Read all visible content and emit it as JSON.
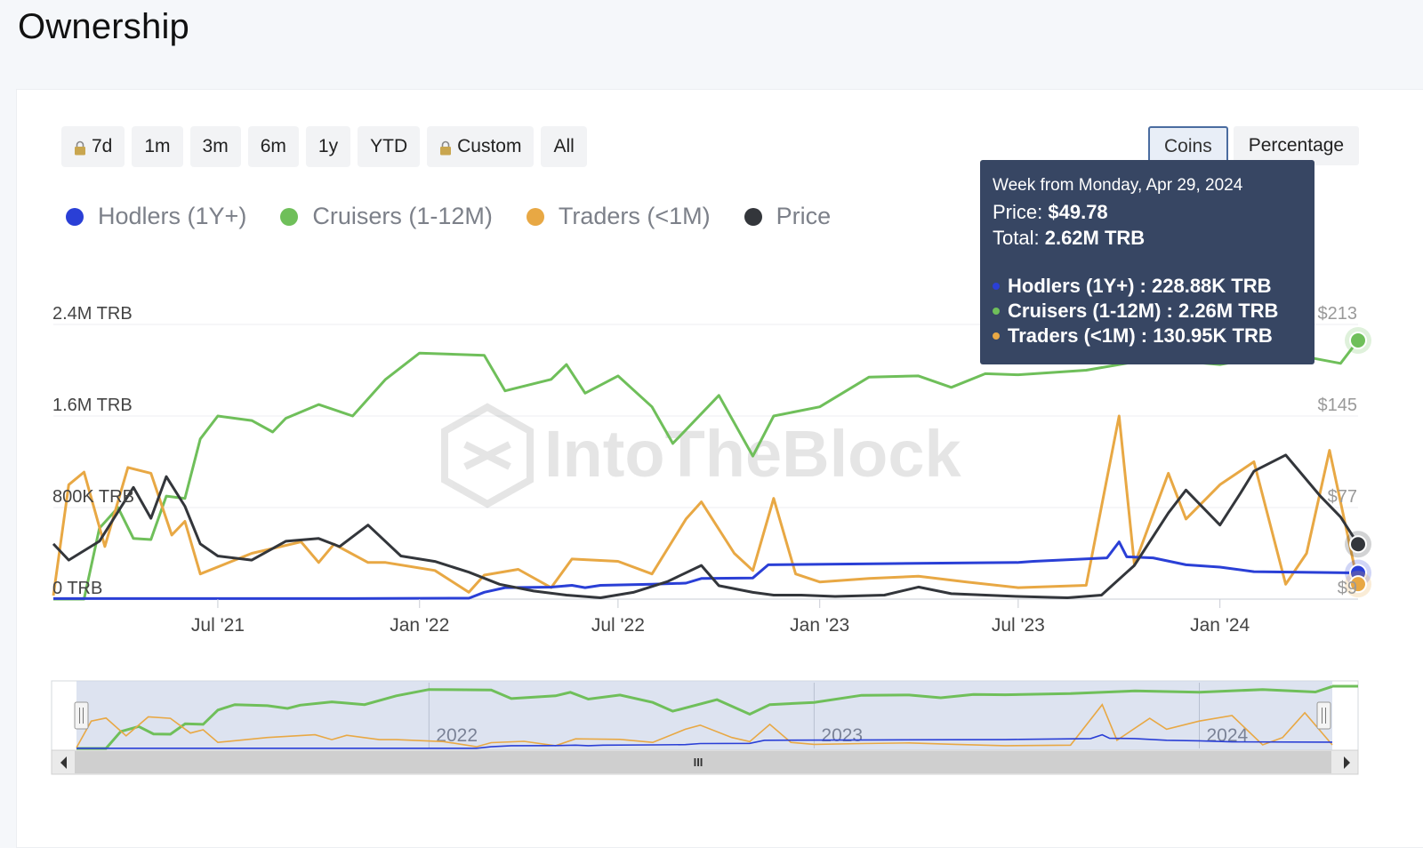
{
  "page": {
    "title": "Ownership"
  },
  "range_buttons": [
    {
      "label": "7d",
      "locked": true
    },
    {
      "label": "1m",
      "locked": false
    },
    {
      "label": "3m",
      "locked": false
    },
    {
      "label": "6m",
      "locked": false
    },
    {
      "label": "1y",
      "locked": false
    },
    {
      "label": "YTD",
      "locked": false
    },
    {
      "label": "Custom",
      "locked": true
    },
    {
      "label": "All",
      "locked": false
    }
  ],
  "mode_buttons": {
    "coins": "Coins",
    "percentage": "Percentage",
    "active": "Coins"
  },
  "watermark": "IntoTheBlock",
  "tooltip": {
    "date": "Week from Monday, Apr 29, 2024",
    "price_label": "Price:",
    "price_value": "$49.78",
    "total_label": "Total:",
    "total_value": "2.62M TRB",
    "rows": [
      {
        "label": "Hodlers (1Y+) :",
        "value": "228.88K TRB",
        "color": "#2a3fd6"
      },
      {
        "label": "Cruisers (1-12M) :",
        "value": "2.26M TRB",
        "color": "#6fbf5a"
      },
      {
        "label": "Traders (<1M) :",
        "value": "130.95K TRB",
        "color": "#e8a844"
      }
    ]
  },
  "navigator": {
    "year_labels": [
      "2022",
      "2023",
      "2024"
    ],
    "scroll_label": "III"
  },
  "chart_data": {
    "type": "line",
    "y_axis_left": {
      "ticks": [
        "0 TRB",
        "800K TRB",
        "1.6M TRB",
        "2.4M TRB"
      ],
      "range": [
        0,
        2400000
      ]
    },
    "y_axis_right": {
      "ticks": [
        "$9",
        "$77",
        "$145",
        "$213"
      ],
      "range": [
        9,
        213
      ]
    },
    "x_tick_labels": [
      "Jul '21",
      "Jan '22",
      "Jul '22",
      "Jan '23",
      "Jul '23",
      "Jan '24"
    ],
    "x_tick_dates": [
      "2021-07-01",
      "2022-01-01",
      "2022-07-01",
      "2023-01-01",
      "2023-07-01",
      "2024-01-01"
    ],
    "x_range": [
      "2021-02-01",
      "2024-05-06"
    ],
    "grid": true,
    "legend_position": "top-left",
    "series": [
      {
        "name": "Hodlers (1Y+)",
        "color": "#2a3fd6",
        "axis": "left",
        "points": [
          [
            "2021-02-01",
            5000
          ],
          [
            "2021-06-01",
            5000
          ],
          [
            "2021-11-01",
            5000
          ],
          [
            "2022-02-15",
            8000
          ],
          [
            "2022-03-01",
            60000
          ],
          [
            "2022-03-20",
            100000
          ],
          [
            "2022-05-01",
            105000
          ],
          [
            "2022-05-20",
            120000
          ],
          [
            "2022-06-01",
            100000
          ],
          [
            "2022-06-15",
            120000
          ],
          [
            "2022-08-01",
            130000
          ],
          [
            "2022-09-01",
            140000
          ],
          [
            "2022-09-15",
            180000
          ],
          [
            "2022-11-01",
            185000
          ],
          [
            "2022-11-15",
            300000
          ],
          [
            "2023-03-01",
            310000
          ],
          [
            "2023-07-01",
            320000
          ],
          [
            "2023-07-15",
            330000
          ],
          [
            "2023-09-20",
            360000
          ],
          [
            "2023-10-01",
            500000
          ],
          [
            "2023-10-08",
            370000
          ],
          [
            "2023-11-01",
            360000
          ],
          [
            "2023-12-01",
            300000
          ],
          [
            "2024-01-01",
            280000
          ],
          [
            "2024-02-01",
            240000
          ],
          [
            "2024-05-06",
            228880
          ]
        ]
      },
      {
        "name": "Cruisers (1-12M)",
        "color": "#6fbf5a",
        "axis": "left",
        "points": [
          [
            "2021-02-01",
            0
          ],
          [
            "2021-03-01",
            0
          ],
          [
            "2021-03-15",
            620000
          ],
          [
            "2021-04-01",
            800000
          ],
          [
            "2021-04-15",
            530000
          ],
          [
            "2021-05-01",
            520000
          ],
          [
            "2021-05-15",
            900000
          ],
          [
            "2021-06-01",
            880000
          ],
          [
            "2021-06-15",
            1400000
          ],
          [
            "2021-07-01",
            1600000
          ],
          [
            "2021-08-01",
            1560000
          ],
          [
            "2021-08-20",
            1460000
          ],
          [
            "2021-09-01",
            1580000
          ],
          [
            "2021-10-01",
            1700000
          ],
          [
            "2021-11-01",
            1600000
          ],
          [
            "2021-12-01",
            1920000
          ],
          [
            "2022-01-01",
            2150000
          ],
          [
            "2022-03-01",
            2130000
          ],
          [
            "2022-03-20",
            1820000
          ],
          [
            "2022-05-01",
            1920000
          ],
          [
            "2022-05-15",
            2050000
          ],
          [
            "2022-06-01",
            1800000
          ],
          [
            "2022-07-01",
            1950000
          ],
          [
            "2022-08-01",
            1680000
          ],
          [
            "2022-08-20",
            1360000
          ],
          [
            "2022-10-01",
            1780000
          ],
          [
            "2022-11-01",
            1250000
          ],
          [
            "2022-11-20",
            1600000
          ],
          [
            "2023-01-01",
            1680000
          ],
          [
            "2023-02-15",
            1940000
          ],
          [
            "2023-04-01",
            1950000
          ],
          [
            "2023-05-01",
            1850000
          ],
          [
            "2023-06-01",
            1970000
          ],
          [
            "2023-07-01",
            1960000
          ],
          [
            "2023-09-01",
            2000000
          ],
          [
            "2023-11-01",
            2100000
          ],
          [
            "2024-01-01",
            2050000
          ],
          [
            "2024-03-01",
            2150000
          ],
          [
            "2024-04-20",
            2060000
          ],
          [
            "2024-05-06",
            2260000
          ]
        ]
      },
      {
        "name": "Traders (<1M)",
        "color": "#e8a844",
        "axis": "left",
        "points": [
          [
            "2021-02-01",
            30000
          ],
          [
            "2021-02-15",
            1000000
          ],
          [
            "2021-03-01",
            1110000
          ],
          [
            "2021-03-20",
            460000
          ],
          [
            "2021-04-10",
            1150000
          ],
          [
            "2021-05-01",
            1100000
          ],
          [
            "2021-05-20",
            560000
          ],
          [
            "2021-06-01",
            680000
          ],
          [
            "2021-06-15",
            220000
          ],
          [
            "2021-08-01",
            400000
          ],
          [
            "2021-09-15",
            500000
          ],
          [
            "2021-10-01",
            320000
          ],
          [
            "2021-10-15",
            480000
          ],
          [
            "2021-11-15",
            320000
          ],
          [
            "2021-12-01",
            320000
          ],
          [
            "2022-01-15",
            250000
          ],
          [
            "2022-02-15",
            60000
          ],
          [
            "2022-03-01",
            210000
          ],
          [
            "2022-04-01",
            260000
          ],
          [
            "2022-05-01",
            100000
          ],
          [
            "2022-05-20",
            350000
          ],
          [
            "2022-07-01",
            330000
          ],
          [
            "2022-08-01",
            220000
          ],
          [
            "2022-09-01",
            700000
          ],
          [
            "2022-09-15",
            850000
          ],
          [
            "2022-10-15",
            400000
          ],
          [
            "2022-11-01",
            250000
          ],
          [
            "2022-11-20",
            880000
          ],
          [
            "2022-12-10",
            220000
          ],
          [
            "2023-01-01",
            150000
          ],
          [
            "2023-02-15",
            180000
          ],
          [
            "2023-04-01",
            200000
          ],
          [
            "2023-05-15",
            150000
          ],
          [
            "2023-07-01",
            100000
          ],
          [
            "2023-09-01",
            120000
          ],
          [
            "2023-10-01",
            1600000
          ],
          [
            "2023-10-15",
            300000
          ],
          [
            "2023-11-15",
            1100000
          ],
          [
            "2023-12-01",
            700000
          ],
          [
            "2024-01-01",
            1000000
          ],
          [
            "2024-02-01",
            1200000
          ],
          [
            "2024-03-01",
            130000
          ],
          [
            "2024-03-20",
            400000
          ],
          [
            "2024-04-10",
            1300000
          ],
          [
            "2024-05-06",
            130950
          ]
        ]
      },
      {
        "name": "Price",
        "color": "#33363b",
        "axis": "right",
        "points": [
          [
            "2021-02-01",
            50
          ],
          [
            "2021-02-15",
            38
          ],
          [
            "2021-03-15",
            52
          ],
          [
            "2021-04-15",
            92
          ],
          [
            "2021-05-01",
            69
          ],
          [
            "2021-05-15",
            100
          ],
          [
            "2021-06-01",
            78
          ],
          [
            "2021-06-15",
            50
          ],
          [
            "2021-07-01",
            41
          ],
          [
            "2021-08-01",
            38
          ],
          [
            "2021-09-01",
            52
          ],
          [
            "2021-10-01",
            54
          ],
          [
            "2021-10-20",
            48
          ],
          [
            "2021-11-15",
            64
          ],
          [
            "2021-12-15",
            41
          ],
          [
            "2022-01-15",
            37
          ],
          [
            "2022-02-15",
            29
          ],
          [
            "2022-03-15",
            20
          ],
          [
            "2022-04-15",
            15
          ],
          [
            "2022-05-15",
            12
          ],
          [
            "2022-06-15",
            10
          ],
          [
            "2022-07-15",
            14
          ],
          [
            "2022-08-15",
            22
          ],
          [
            "2022-09-15",
            34
          ],
          [
            "2022-10-01",
            19
          ],
          [
            "2022-11-01",
            14
          ],
          [
            "2022-11-20",
            12
          ],
          [
            "2022-12-15",
            12
          ],
          [
            "2023-01-15",
            11
          ],
          [
            "2023-03-01",
            12
          ],
          [
            "2023-04-01",
            18
          ],
          [
            "2023-05-01",
            13
          ],
          [
            "2023-07-01",
            11
          ],
          [
            "2023-08-15",
            10
          ],
          [
            "2023-09-15",
            12
          ],
          [
            "2023-10-15",
            34
          ],
          [
            "2023-11-15",
            73
          ],
          [
            "2023-12-01",
            90
          ],
          [
            "2024-01-01",
            64
          ],
          [
            "2024-01-20",
            88
          ],
          [
            "2024-02-01",
            104
          ],
          [
            "2024-03-01",
            116
          ],
          [
            "2024-04-01",
            86
          ],
          [
            "2024-04-20",
            70
          ],
          [
            "2024-05-06",
            49.78
          ]
        ]
      }
    ],
    "tooltip_point": "2024-05-06"
  }
}
